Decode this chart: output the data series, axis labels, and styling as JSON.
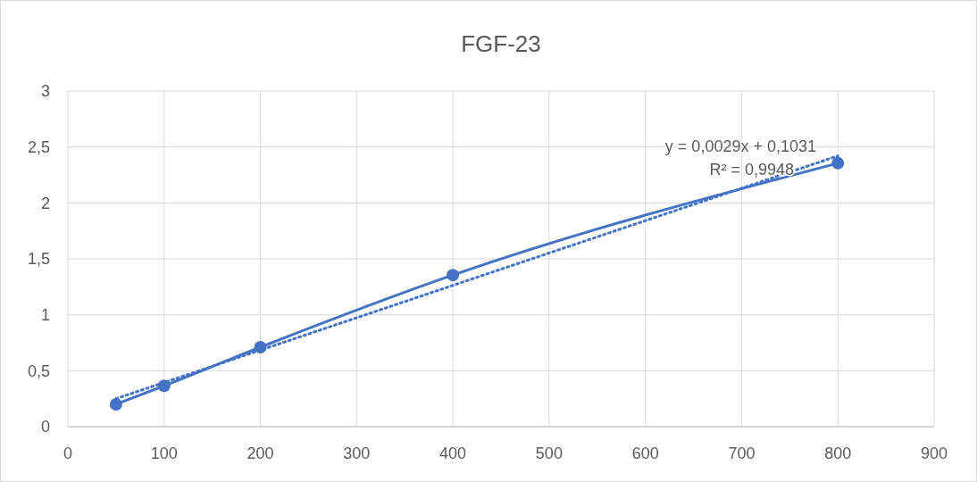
{
  "chart_data": {
    "type": "line",
    "title": "FGF-23",
    "series": [
      {
        "color": "#4472c4",
        "x": [
          50,
          100,
          200,
          400,
          800
        ],
        "values": [
          0.2,
          0.365,
          0.71,
          1.355,
          2.355
        ],
        "marker": "circle",
        "line_style": "solid"
      },
      {
        "type": "line",
        "color": "#4472c4",
        "x": [
          50,
          800
        ],
        "values": [
          0.25,
          2.42
        ],
        "marker": "none",
        "line_style": "dotted"
      }
    ],
    "xlim": [
      0,
      900
    ],
    "xticks": [
      0,
      100,
      200,
      300,
      400,
      500,
      600,
      700,
      800,
      900
    ],
    "ylim": [
      0,
      3
    ],
    "yticks": [
      0,
      {
        "value": 0.5,
        "label": "0,5"
      },
      1,
      {
        "value": 1.5,
        "label": "1,5"
      },
      2,
      {
        "value": 2.5,
        "label": "2,5"
      },
      3
    ],
    "grid": true,
    "annotations": [
      "y = 0,0029x + 0,1031",
      "R² = 0,9948"
    ]
  }
}
